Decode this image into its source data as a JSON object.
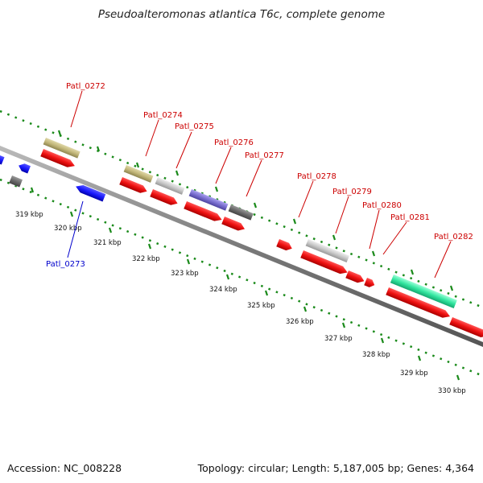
{
  "title": "Pseudoalteromonas atlantica T6c, complete genome",
  "accession": "Accession: NC_008228",
  "topology": "Topology: circular; Length: 5,187,005 bp; Genes: 4,364",
  "scale_labels": [
    "319 kbp",
    "320 kbp",
    "321 kbp",
    "322 kbp",
    "323 kbp",
    "324 kbp",
    "325 kbp",
    "326 kbp",
    "327 kbp",
    "328 kbp",
    "329 kbp",
    "330 kbp"
  ],
  "gene_labels": [
    "Patl_0272",
    "Patl_0273",
    "Patl_0274",
    "Patl_0275",
    "Patl_0276",
    "Patl_0277",
    "Patl_0278",
    "Patl_0279",
    "Patl_0280",
    "Patl_0281",
    "Patl_0282"
  ],
  "colors": {
    "cds_red": "#ee1111",
    "reverse_blue": "#1a1aff",
    "label_red": "#cc0000",
    "label_blue": "#0000cc",
    "tick_green": "#1a8a1a",
    "backbone": "#7a7a7a",
    "khaki": "#c2b77a",
    "light_gray": "#c8c8c8",
    "dark_gray": "#6a6a6a",
    "purple": "#7a6fd0",
    "sea_green": "#33e6a0"
  }
}
